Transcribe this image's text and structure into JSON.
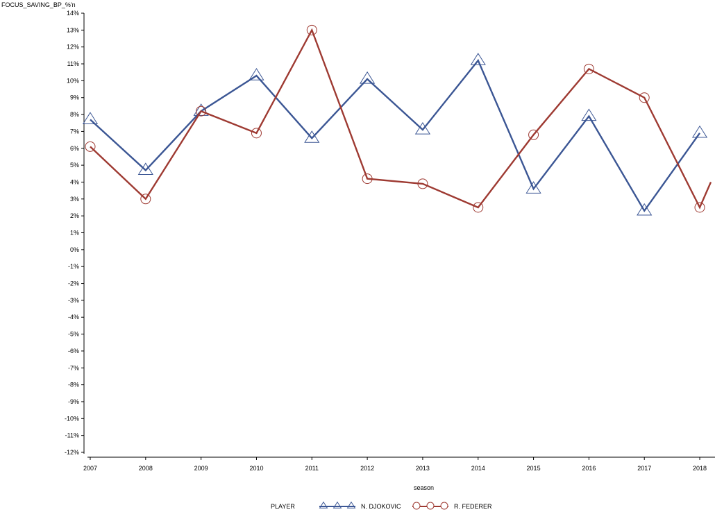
{
  "chart_data": {
    "type": "line",
    "ylabel": "FOCUS_SAVING_BP_%'n",
    "xlabel": "season",
    "x": [
      2007,
      2008,
      2009,
      2010,
      2011,
      2012,
      2013,
      2014,
      2015,
      2016,
      2017,
      2018
    ],
    "xlim": [
      2007,
      2018.2
    ],
    "ylim": [
      -12,
      14
    ],
    "y_ticks": [
      "-12%",
      "-11%",
      "-10%",
      "-9%",
      "-8%",
      "-7%",
      "-6%",
      "-5%",
      "-4%",
      "-3%",
      "-2%",
      "-1%",
      "0%",
      "1%",
      "2%",
      "3%",
      "4%",
      "5%",
      "6%",
      "7%",
      "8%",
      "9%",
      "10%",
      "11%",
      "12%",
      "13%",
      "14%"
    ],
    "y_tick_values": [
      -12,
      -11,
      -10,
      -9,
      -8,
      -7,
      -6,
      -5,
      -4,
      -3,
      -2,
      -1,
      0,
      1,
      2,
      3,
      4,
      5,
      6,
      7,
      8,
      9,
      10,
      11,
      12,
      13,
      14
    ],
    "x_ticks": [
      "2007",
      "2008",
      "2009",
      "2010",
      "2011",
      "2012",
      "2013",
      "2014",
      "2015",
      "2016",
      "2017",
      "2018"
    ],
    "grid": false,
    "legend": {
      "title": "PLAYER",
      "placement": "bottom-center"
    },
    "series": [
      {
        "name": "N. DJOKOVIC",
        "color": "#3b5694",
        "marker": "triangle",
        "values": [
          7.7,
          4.7,
          8.2,
          10.3,
          6.6,
          10.1,
          7.1,
          11.2,
          3.6,
          7.9,
          2.3,
          6.9
        ]
      },
      {
        "name": "R. FEDERER",
        "color": "#9e3a32",
        "marker": "circle",
        "values": [
          6.1,
          3.0,
          8.2,
          6.9,
          13.0,
          4.2,
          3.9,
          2.5,
          6.8,
          10.7,
          9.0,
          2.5
        ]
      }
    ],
    "federer_tail_value_2018_2": 4.0
  }
}
